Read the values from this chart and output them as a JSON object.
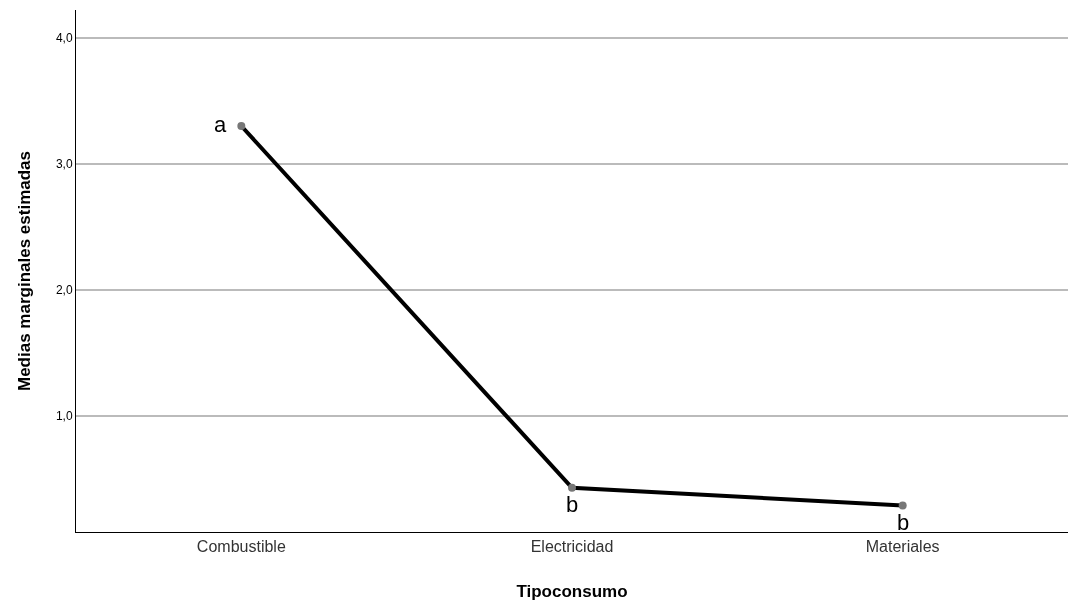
{
  "chart_data": {
    "type": "line",
    "xlabel": "Tipoconsumo",
    "ylabel": "Medias marginales estimadas",
    "categories": [
      "Combustible",
      "Electricidad",
      "Materiales"
    ],
    "series": [
      {
        "color": "#000000",
        "values": [
          3.3,
          0.43,
          0.29
        ]
      }
    ],
    "ylim": [
      0.08,
      4.22
    ],
    "yticks": [
      {
        "value": 1,
        "label": "1,0"
      },
      {
        "value": 2,
        "label": "2,0"
      },
      {
        "value": 3,
        "label": "3,0"
      },
      {
        "value": 4,
        "label": "4,0"
      }
    ],
    "grid": "y",
    "marker": "circle",
    "line_style": "solid",
    "annotations": [
      {
        "text": "a",
        "x": "Combustible",
        "y": 3.3
      },
      {
        "text": "b",
        "x": "Electricidad",
        "y": 0.43
      },
      {
        "text": "b",
        "x": "Materiales",
        "y": 0.29
      }
    ]
  }
}
